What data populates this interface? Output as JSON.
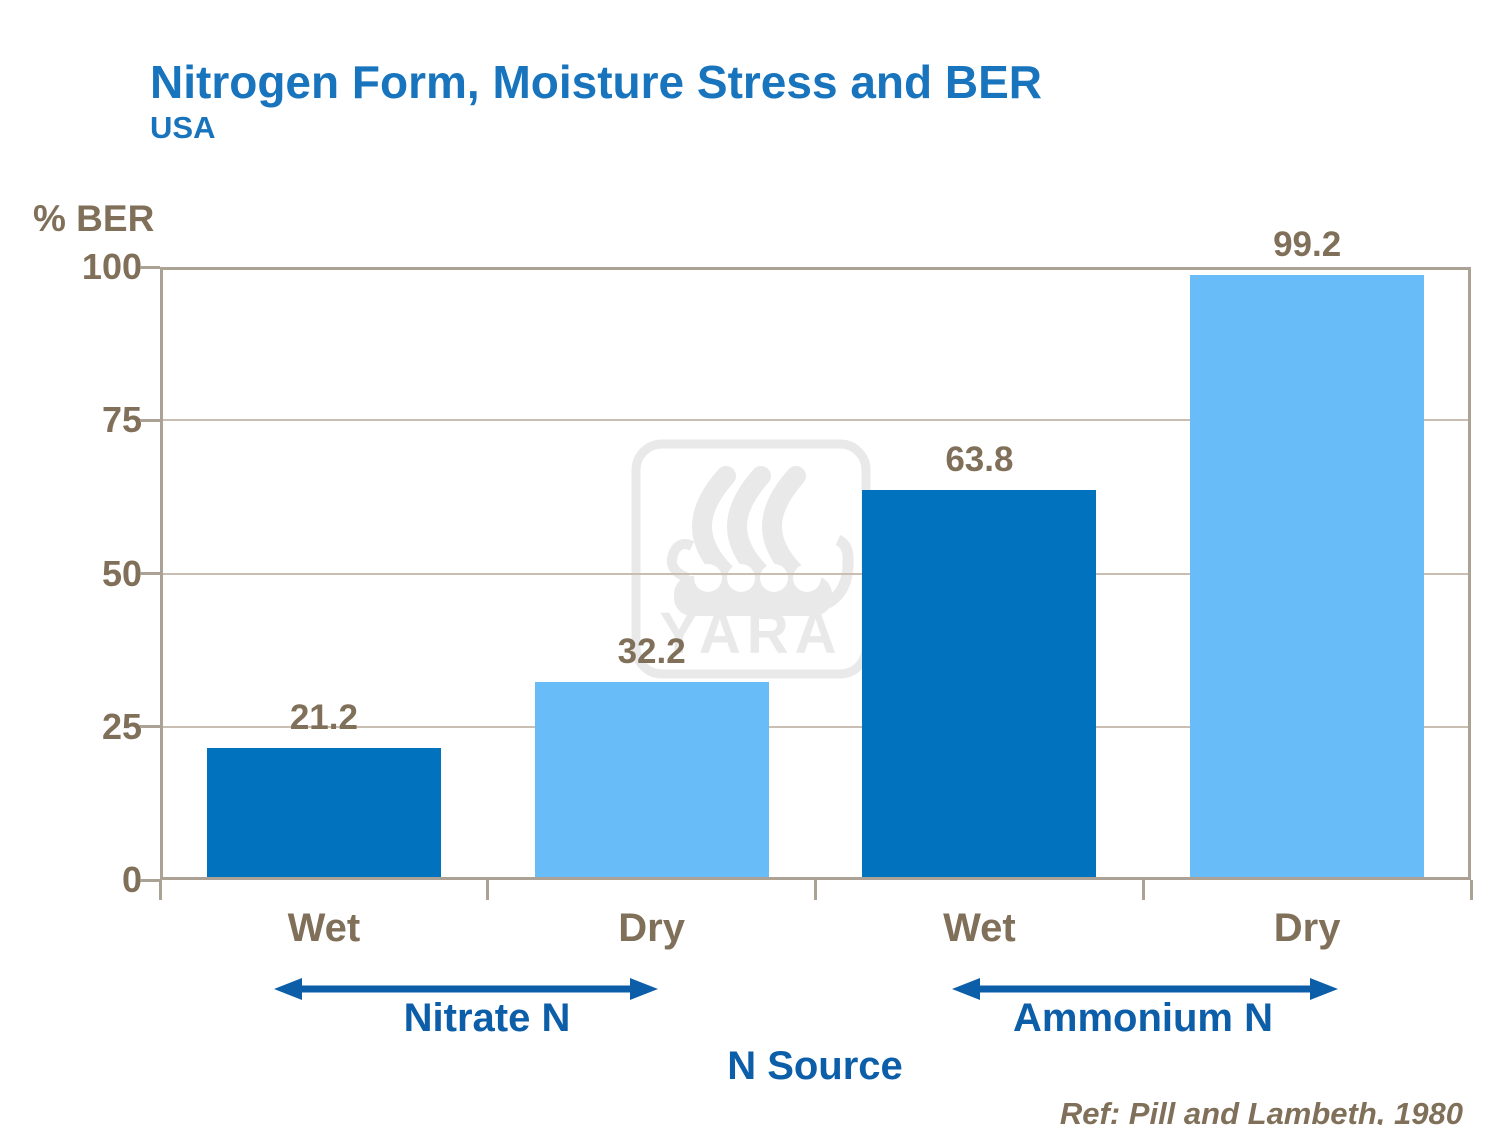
{
  "chart_data": {
    "type": "bar",
    "title": "Nitrogen Form, Moisture Stress and BER",
    "subtitle": "USA",
    "ylabel": "% BER",
    "xlabel": "N Source",
    "ylim": [
      0,
      100
    ],
    "yticks": [
      0,
      25,
      50,
      75,
      100
    ],
    "categories": [
      "Wet",
      "Dry",
      "Wet",
      "Dry"
    ],
    "values": [
      21.2,
      32.2,
      63.8,
      99.2
    ],
    "bar_colors": [
      "#0072BE",
      "#68BDF8",
      "#0072BE",
      "#68BDF8"
    ],
    "groups": [
      {
        "label": "Nitrate N",
        "span": [
          0,
          1
        ]
      },
      {
        "label": "Ammonium N",
        "span": [
          2,
          3
        ]
      }
    ],
    "grid": true,
    "legend": false
  },
  "footer": {
    "reference": "Ref: Pill and Lambeth, 1980"
  },
  "watermark": {
    "name": "yara-logo",
    "label": "YARA"
  },
  "colors": {
    "title_blue": "#1874BD",
    "accent_blue": "#0D5EA8",
    "brown": "#80705A",
    "axis": "#ACA195",
    "grid": "#C9BEB1",
    "bar_dark": "#0072BE",
    "bar_light": "#68BDF8",
    "watermark_gray": "#E9E9E9"
  }
}
